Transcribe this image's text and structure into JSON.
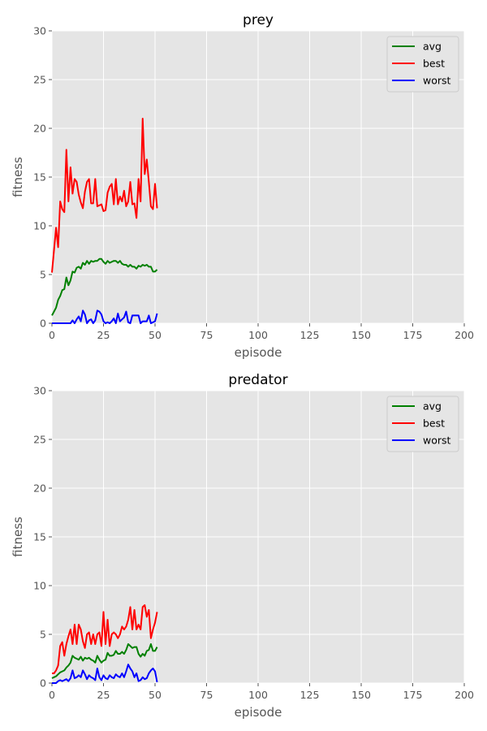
{
  "figure": {
    "background": "#ffffff",
    "axes_facecolor": "#e5e5e5",
    "grid_color": "#ffffff"
  },
  "chart_data": [
    {
      "type": "line",
      "title": "prey",
      "xlabel": "episode",
      "ylabel": "fitness",
      "xlim": [
        0,
        200
      ],
      "ylim": [
        0,
        30
      ],
      "xticks": [
        0,
        25,
        50,
        75,
        100,
        125,
        150,
        175,
        200
      ],
      "yticks": [
        0,
        5,
        10,
        15,
        20,
        25,
        30
      ],
      "grid": true,
      "legend": "top-right",
      "x": [
        0,
        1,
        2,
        3,
        4,
        5,
        6,
        7,
        8,
        9,
        10,
        11,
        12,
        13,
        14,
        15,
        16,
        17,
        18,
        19,
        20,
        21,
        22,
        23,
        24,
        25,
        26,
        27,
        28,
        29,
        30,
        31,
        32,
        33,
        34,
        35,
        36,
        37,
        38,
        39,
        40,
        41,
        42,
        43,
        44,
        45,
        46,
        47,
        48,
        49,
        50,
        51
      ],
      "series": [
        {
          "name": "avg",
          "color": "#008000",
          "values": [
            0.8,
            1.2,
            1.6,
            2.4,
            2.8,
            3.4,
            3.5,
            4.7,
            3.9,
            4.4,
            5.3,
            5.2,
            5.7,
            5.8,
            5.6,
            6.2,
            6.0,
            6.4,
            6.1,
            6.4,
            6.3,
            6.4,
            6.4,
            6.6,
            6.6,
            6.3,
            6.1,
            6.4,
            6.2,
            6.3,
            6.4,
            6.4,
            6.2,
            6.4,
            6.1,
            6.0,
            6.0,
            5.8,
            6.0,
            5.8,
            5.8,
            5.6,
            5.9,
            5.8,
            6.0,
            5.9,
            6.0,
            5.8,
            5.8,
            5.3,
            5.3,
            5.5
          ]
        },
        {
          "name": "best",
          "color": "#ff0000",
          "values": [
            5.2,
            7.5,
            9.8,
            7.8,
            12.5,
            11.7,
            11.4,
            17.8,
            12.5,
            16.0,
            13.3,
            14.8,
            14.5,
            13.2,
            12.4,
            11.8,
            13.5,
            14.5,
            14.8,
            12.3,
            12.3,
            14.8,
            12.0,
            12.1,
            12.2,
            11.5,
            11.6,
            13.4,
            14.0,
            14.3,
            12.2,
            14.8,
            12.2,
            13.0,
            12.5,
            13.6,
            12.0,
            12.5,
            14.5,
            12.2,
            12.3,
            10.8,
            14.8,
            12.5,
            21.0,
            15.3,
            16.8,
            14.5,
            12.0,
            11.7,
            14.3,
            11.8
          ]
        },
        {
          "name": "worst",
          "color": "#0000ff",
          "values": [
            0,
            0,
            0,
            0,
            0,
            0,
            0,
            0,
            0,
            0,
            0.3,
            0,
            0.4,
            0.7,
            0.2,
            1.3,
            0.9,
            0,
            0.3,
            0.4,
            0,
            0.3,
            1.3,
            1.2,
            0.9,
            0.2,
            0,
            0.1,
            0,
            0.2,
            0.5,
            0,
            1.0,
            0.2,
            0.4,
            0.6,
            1.2,
            0.1,
            0,
            0.8,
            0.8,
            0.8,
            0.8,
            0,
            0.2,
            0.2,
            0.2,
            0.8,
            0,
            0.1,
            0.2,
            1.0
          ]
        }
      ]
    },
    {
      "type": "line",
      "title": "predator",
      "xlabel": "episode",
      "ylabel": "fitness",
      "xlim": [
        0,
        200
      ],
      "ylim": [
        0,
        30
      ],
      "xticks": [
        0,
        25,
        50,
        75,
        100,
        125,
        150,
        175,
        200
      ],
      "yticks": [
        0,
        5,
        10,
        15,
        20,
        25,
        30
      ],
      "grid": true,
      "legend": "top-right",
      "x": [
        0,
        1,
        2,
        3,
        4,
        5,
        6,
        7,
        8,
        9,
        10,
        11,
        12,
        13,
        14,
        15,
        16,
        17,
        18,
        19,
        20,
        21,
        22,
        23,
        24,
        25,
        26,
        27,
        28,
        29,
        30,
        31,
        32,
        33,
        34,
        35,
        36,
        37,
        38,
        39,
        40,
        41,
        42,
        43,
        44,
        45,
        46,
        47,
        48,
        49,
        50,
        51
      ],
      "series": [
        {
          "name": "avg",
          "color": "#008000",
          "values": [
            0.5,
            0.6,
            0.7,
            0.9,
            1.1,
            1.2,
            1.3,
            1.6,
            1.8,
            2.1,
            2.8,
            2.6,
            2.5,
            2.4,
            2.7,
            2.3,
            2.6,
            2.5,
            2.6,
            2.4,
            2.3,
            2.1,
            2.8,
            2.4,
            2.1,
            2.3,
            2.4,
            3.1,
            2.8,
            2.8,
            2.9,
            3.3,
            3.0,
            3.0,
            3.2,
            3.0,
            3.4,
            4.0,
            3.8,
            3.6,
            3.7,
            3.7,
            3.0,
            2.7,
            3.0,
            2.8,
            3.3,
            3.4,
            4.0,
            3.3,
            3.3,
            3.7
          ]
        },
        {
          "name": "best",
          "color": "#ff0000",
          "values": [
            1.0,
            1.0,
            1.3,
            1.8,
            3.8,
            4.2,
            2.8,
            4.0,
            4.8,
            5.5,
            4.0,
            6.0,
            4.0,
            6.0,
            5.5,
            4.3,
            3.6,
            5.0,
            5.2,
            4.0,
            5.0,
            4.0,
            5.0,
            5.2,
            3.8,
            7.3,
            4.0,
            6.5,
            3.8,
            5.0,
            5.2,
            5.0,
            4.6,
            5.0,
            5.8,
            5.5,
            5.8,
            6.5,
            7.8,
            5.5,
            7.5,
            5.5,
            6.0,
            5.5,
            7.8,
            8.0,
            6.8,
            7.5,
            4.6,
            5.5,
            6.2,
            7.3
          ]
        },
        {
          "name": "worst",
          "color": "#0000ff",
          "values": [
            0,
            0,
            0,
            0.2,
            0.3,
            0.2,
            0.3,
            0.4,
            0.2,
            0.5,
            1.3,
            0.5,
            0.6,
            0.8,
            0.6,
            1.3,
            0.9,
            0.4,
            0.8,
            0.6,
            0.5,
            0.3,
            1.5,
            0.6,
            0.3,
            0.8,
            0.5,
            0.4,
            0.8,
            0.6,
            0.5,
            0.9,
            0.7,
            0.6,
            1.0,
            0.6,
            1.2,
            1.9,
            1.5,
            1.2,
            0.6,
            1.0,
            0.2,
            0.3,
            0.6,
            0.4,
            0.5,
            1.0,
            1.3,
            1.5,
            1.2,
            0.1
          ]
        }
      ]
    }
  ]
}
